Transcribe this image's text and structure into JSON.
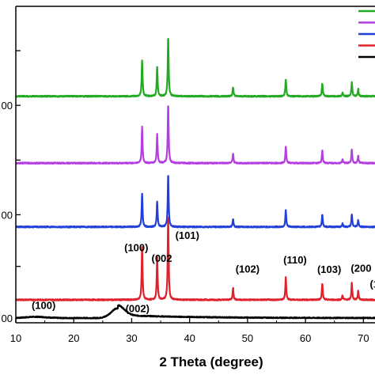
{
  "chart_data": {
    "type": "line",
    "title": "",
    "xlabel": "2 Theta (degree)",
    "ylabel": "",
    "xlim": [
      10,
      72
    ],
    "ylim": [
      0,
      100
    ],
    "xticks": [
      10,
      20,
      30,
      40,
      50,
      60,
      70
    ],
    "xtick_labels": [
      "10",
      "20",
      "30",
      "40",
      "50",
      "60",
      "70"
    ],
    "yticks": [
      0,
      17,
      34,
      52,
      70,
      88
    ],
    "ytick_labels": [
      "00",
      "",
      "00",
      "",
      "00",
      ""
    ],
    "grid": false,
    "legend_position": "top-right",
    "series": [
      {
        "color": "#000000",
        "baseline": 0,
        "noise": 0.3,
        "broad": {
          "center": 27.6,
          "height": 3.2,
          "width": 1.6
        },
        "shoulder": {
          "center": 13.5,
          "height": 0.4,
          "width": 2.5
        },
        "peaks": []
      },
      {
        "color": "#e0202a",
        "baseline": 6,
        "noise": 0.4,
        "peaks": [
          [
            31.8,
            17.5
          ],
          [
            34.4,
            14
          ],
          [
            36.3,
            28
          ],
          [
            47.5,
            4
          ],
          [
            56.6,
            7.5
          ],
          [
            62.9,
            5.5
          ],
          [
            66.4,
            1.5
          ],
          [
            68.0,
            5.5
          ],
          [
            69.1,
            3
          ]
        ]
      },
      {
        "color": "#2240d8",
        "baseline": 30,
        "noise": 0.4,
        "peaks": [
          [
            31.8,
            11
          ],
          [
            34.4,
            8.5
          ],
          [
            36.3,
            17.5
          ],
          [
            47.5,
            2.7
          ],
          [
            56.6,
            5.5
          ],
          [
            62.9,
            4.2
          ],
          [
            66.4,
            1.2
          ],
          [
            68.0,
            4.2
          ],
          [
            69.1,
            2.2
          ]
        ]
      },
      {
        "color": "#b43ee0",
        "baseline": 51,
        "noise": 0.4,
        "peaks": [
          [
            31.8,
            11.8
          ],
          [
            34.4,
            9.6
          ],
          [
            36.3,
            19.6
          ],
          [
            47.5,
            3.0
          ],
          [
            56.6,
            5.6
          ],
          [
            62.9,
            4.2
          ],
          [
            66.4,
            1.3
          ],
          [
            68.0,
            4.5
          ],
          [
            69.1,
            2.4
          ]
        ]
      },
      {
        "color": "#22aa22",
        "baseline": 73,
        "noise": 0.4,
        "peaks": [
          [
            31.8,
            11.8
          ],
          [
            34.4,
            9.6
          ],
          [
            36.3,
            19.6
          ],
          [
            47.5,
            3.0
          ],
          [
            56.6,
            5.6
          ],
          [
            62.9,
            4.2
          ],
          [
            66.4,
            1.3
          ],
          [
            68.0,
            4.5
          ],
          [
            69.1,
            2.4
          ]
        ]
      }
    ],
    "legend_colors": [
      "#22aa22",
      "#b43ee0",
      "#2240d8",
      "#e0202a",
      "#000000"
    ],
    "annotations": [
      {
        "text": "(100)",
        "x": 30.8,
        "y": 22
      },
      {
        "text": "(002",
        "x": 35.2,
        "y": 18.5
      },
      {
        "text": "(101)",
        "x": 39.6,
        "y": 26
      },
      {
        "text": "(102)",
        "x": 50.0,
        "y": 15
      },
      {
        "text": "(110)",
        "x": 58.2,
        "y": 18
      },
      {
        "text": "(103)",
        "x": 64.1,
        "y": 14.8
      },
      {
        "text": "(200",
        "x": 69.6,
        "y": 15.2
      },
      {
        "text": "(1",
        "x": 71.9,
        "y": 10
      },
      {
        "text": "(100)",
        "x": 14.8,
        "y": 3.0
      },
      {
        "text": "(002)",
        "x": 31.0,
        "y": 2.0
      }
    ]
  }
}
